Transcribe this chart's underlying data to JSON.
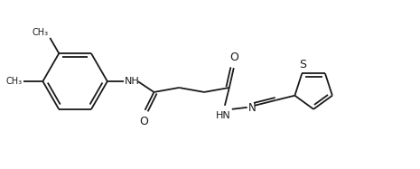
{
  "background_color": "#ffffff",
  "line_color": "#1a1a1a",
  "text_color": "#1a1a1a",
  "line_width": 1.3,
  "figsize": [
    4.65,
    1.87
  ],
  "dpi": 100,
  "xlim": [
    0,
    465
  ],
  "ylim": [
    0,
    187
  ]
}
